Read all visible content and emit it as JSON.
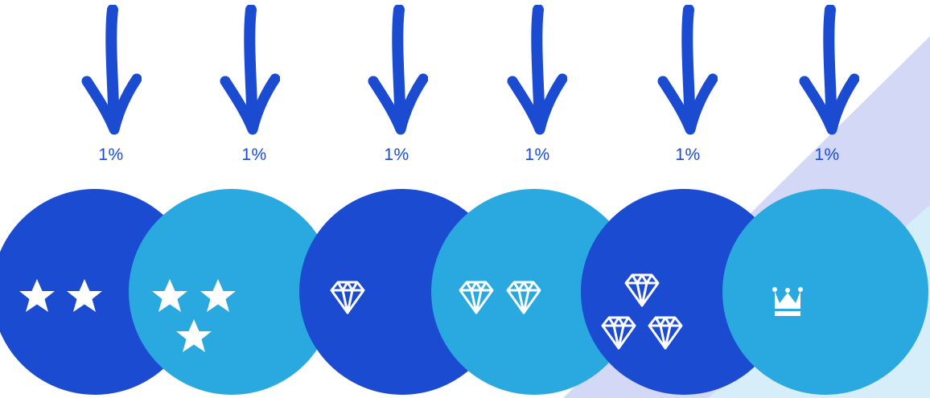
{
  "colors": {
    "arrow": "#1a4bd1",
    "dark_circle": "#1a4bd1",
    "light_circle": "#2aa9e0",
    "percent_text": "#1a4bd1",
    "icon": "#ffffff",
    "bg_triangle": "#d2d8f5",
    "bg_triangle_light": "#d6eef9"
  },
  "tiers": [
    {
      "percent": "1%",
      "icon": "two-stars-icon",
      "color": "dark"
    },
    {
      "percent": "1%",
      "icon": "three-stars-icon",
      "color": "light"
    },
    {
      "percent": "1%",
      "icon": "one-diamond-icon",
      "color": "dark"
    },
    {
      "percent": "1%",
      "icon": "two-diamonds-icon",
      "color": "light"
    },
    {
      "percent": "1%",
      "icon": "three-diamonds-icon",
      "color": "dark"
    },
    {
      "percent": "1%",
      "icon": "crown-icon",
      "color": "light"
    }
  ]
}
